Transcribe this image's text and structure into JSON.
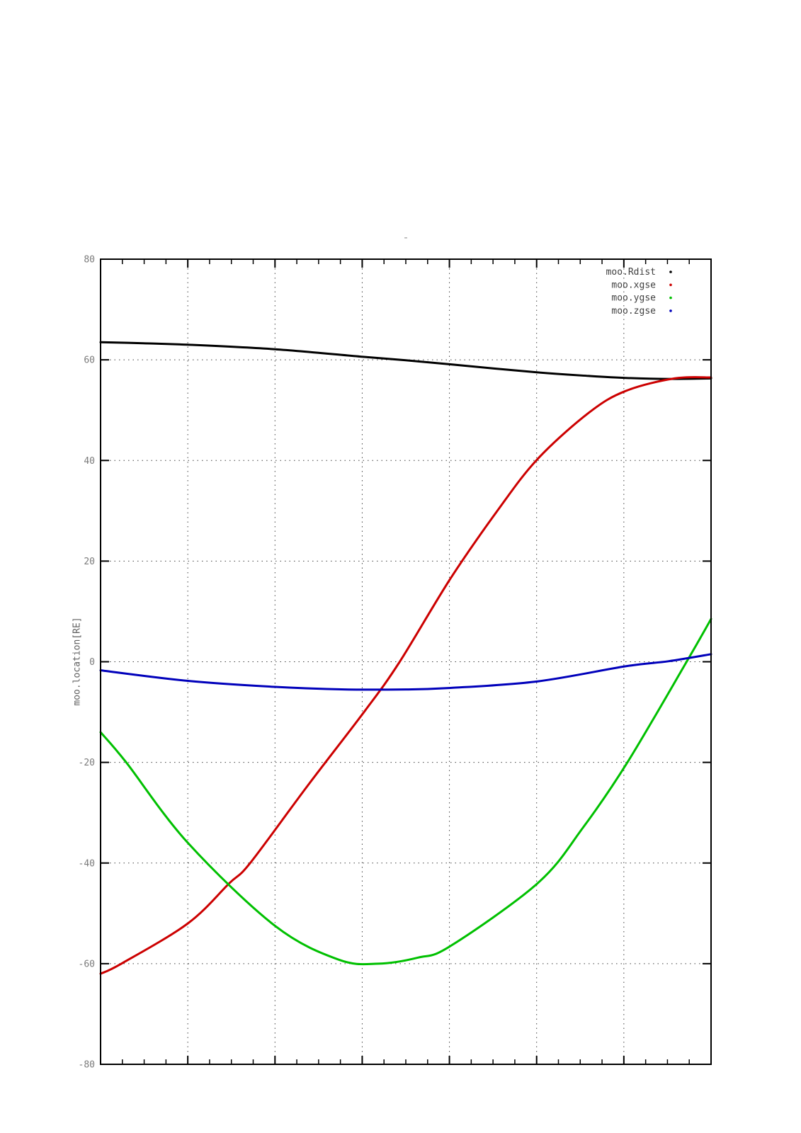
{
  "title": "-",
  "chart_data": {
    "type": "line",
    "title": "",
    "xlabel": "",
    "ylabel": "moo.location[RE]",
    "ylim": [
      -80,
      80
    ],
    "yticks": [
      80,
      60,
      40,
      20,
      0,
      -20,
      -40,
      -60,
      -80
    ],
    "x_major_divisions": 7,
    "x_minor_per_major": 4,
    "x_tick_labels": [],
    "grid": "dotted",
    "legend_position": "top-right",
    "legend_entries": [
      "moo.Rdist",
      "moo.xgse",
      "moo.ygse",
      "moo.zgse"
    ],
    "colors": {
      "axis": "#000000",
      "grid": "#404040",
      "tick_label": "#7a7a7a",
      "legend_text": "#404040"
    },
    "series": [
      {
        "name": "moo.Rdist",
        "color": "#000000",
        "points": [
          [
            0,
            63.5
          ],
          [
            0.07,
            63.3
          ],
          [
            0.143,
            63.0
          ],
          [
            0.286,
            62.1
          ],
          [
            0.43,
            60.6
          ],
          [
            0.5,
            59.9
          ],
          [
            0.573,
            59.1
          ],
          [
            0.716,
            57.5
          ],
          [
            0.8,
            56.8
          ],
          [
            0.86,
            56.4
          ],
          [
            0.93,
            56.2
          ],
          [
            1,
            56.3
          ]
        ]
      },
      {
        "name": "moo.xgse",
        "color": "#cc0000",
        "points": [
          [
            0,
            -62
          ],
          [
            0.034,
            -60
          ],
          [
            0.143,
            -52
          ],
          [
            0.211,
            -44
          ],
          [
            0.245,
            -40
          ],
          [
            0.34,
            -24.5
          ],
          [
            0.434,
            -9.6
          ],
          [
            0.49,
            0
          ],
          [
            0.573,
            16.5
          ],
          [
            0.65,
            30
          ],
          [
            0.716,
            40.3
          ],
          [
            0.8,
            49.5
          ],
          [
            0.86,
            53.8
          ],
          [
            0.94,
            56.3
          ],
          [
            1,
            56.5
          ]
        ]
      },
      {
        "name": "moo.ygse",
        "color": "#00c000",
        "points": [
          [
            0,
            -14
          ],
          [
            0.042,
            -20
          ],
          [
            0.143,
            -36
          ],
          [
            0.286,
            -52.5
          ],
          [
            0.39,
            -59.2
          ],
          [
            0.455,
            -60
          ],
          [
            0.52,
            -58.8
          ],
          [
            0.573,
            -56.5
          ],
          [
            0.716,
            -44
          ],
          [
            0.79,
            -33
          ],
          [
            0.863,
            -20
          ],
          [
            0.96,
            0
          ],
          [
            1,
            8.5
          ]
        ]
      },
      {
        "name": "moo.zgse",
        "color": "#0000bb",
        "points": [
          [
            0,
            -1.7
          ],
          [
            0.143,
            -3.8
          ],
          [
            0.286,
            -5.0
          ],
          [
            0.4,
            -5.5
          ],
          [
            0.5,
            -5.5
          ],
          [
            0.573,
            -5.2
          ],
          [
            0.716,
            -3.9
          ],
          [
            0.86,
            -0.9
          ],
          [
            0.93,
            0.1
          ],
          [
            1,
            1.5
          ]
        ]
      }
    ]
  }
}
